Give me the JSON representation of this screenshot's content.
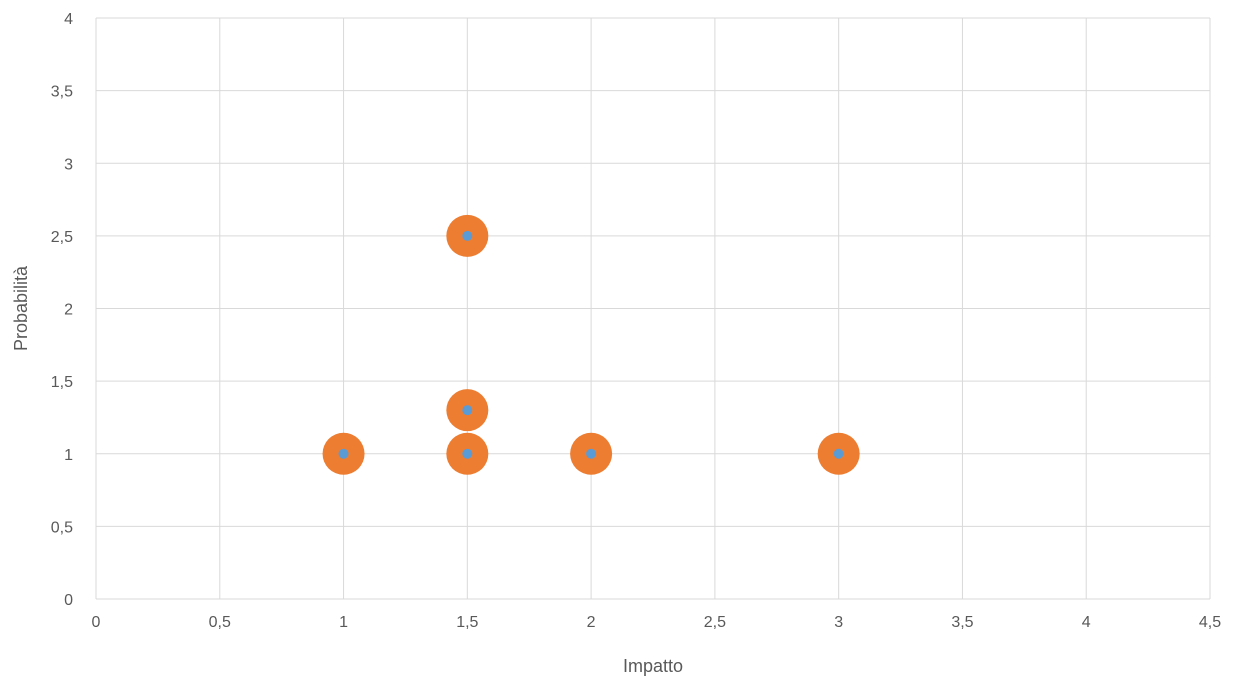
{
  "chart_data": {
    "type": "scatter",
    "title": "",
    "xlabel": "Impatto",
    "ylabel": "Probabilità",
    "xlim": [
      0,
      4.5
    ],
    "ylim": [
      0,
      4
    ],
    "x_ticks": [
      {
        "value": 0,
        "label": "0"
      },
      {
        "value": 0.5,
        "label": "0,5"
      },
      {
        "value": 1,
        "label": "1"
      },
      {
        "value": 1.5,
        "label": "1,5"
      },
      {
        "value": 2,
        "label": "2"
      },
      {
        "value": 2.5,
        "label": "2,5"
      },
      {
        "value": 3,
        "label": "3"
      },
      {
        "value": 3.5,
        "label": "3,5"
      },
      {
        "value": 4,
        "label": "4"
      },
      {
        "value": 4.5,
        "label": "4,5"
      }
    ],
    "y_ticks": [
      {
        "value": 0,
        "label": "0"
      },
      {
        "value": 0.5,
        "label": "0,5"
      },
      {
        "value": 1,
        "label": "1"
      },
      {
        "value": 1.5,
        "label": "1,5"
      },
      {
        "value": 2,
        "label": "2"
      },
      {
        "value": 2.5,
        "label": "2,5"
      },
      {
        "value": 3,
        "label": "3"
      },
      {
        "value": 3.5,
        "label": "3,5"
      },
      {
        "value": 4,
        "label": "4"
      }
    ],
    "grid": true,
    "legend": "none",
    "series": [
      {
        "marker": "large-circle",
        "color": "#ed7d31",
        "points": [
          {
            "x": 1,
            "y": 1
          },
          {
            "x": 1.5,
            "y": 1
          },
          {
            "x": 1.5,
            "y": 1.3
          },
          {
            "x": 1.5,
            "y": 2.5
          },
          {
            "x": 2,
            "y": 1
          },
          {
            "x": 3,
            "y": 1
          }
        ]
      },
      {
        "marker": "small-circle",
        "color": "#5b9bd5",
        "points": [
          {
            "x": 1,
            "y": 1
          },
          {
            "x": 1.5,
            "y": 1
          },
          {
            "x": 1.5,
            "y": 1.3
          },
          {
            "x": 1.5,
            "y": 2.5
          },
          {
            "x": 2,
            "y": 1
          },
          {
            "x": 3,
            "y": 1
          }
        ]
      }
    ]
  }
}
